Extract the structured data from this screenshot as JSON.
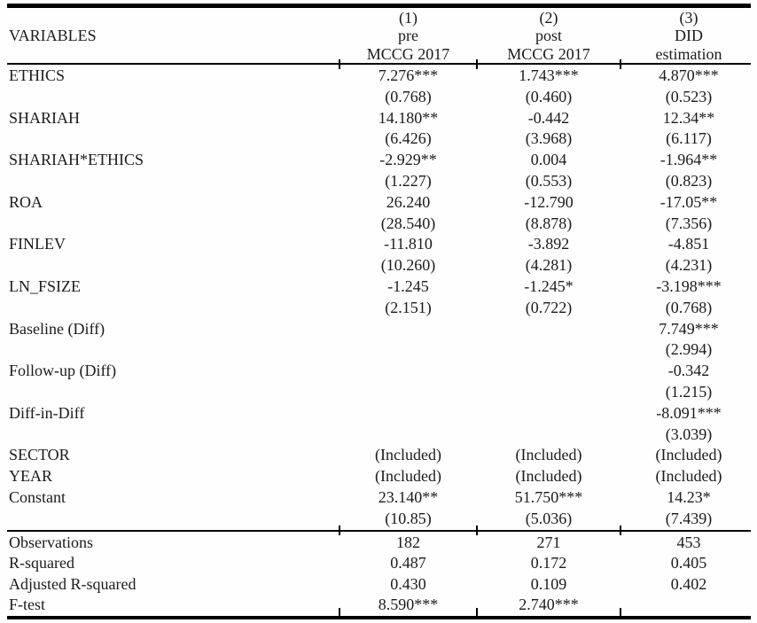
{
  "colors": {
    "background": "#fefefe",
    "text": "#1b1b1b",
    "rule": "#000000"
  },
  "table": {
    "header": {
      "variables_label": "VARIABLES",
      "columns": [
        {
          "lines": [
            "(1)",
            "pre",
            "MCCG 2017"
          ]
        },
        {
          "lines": [
            "(2)",
            "post",
            "MCCG 2017"
          ]
        },
        {
          "lines": [
            "(3)",
            "DID",
            "estimation"
          ]
        }
      ]
    },
    "body_rows": [
      {
        "label": "ETHICS",
        "cells": [
          "7.276***",
          "1.743***",
          "4.870***"
        ]
      },
      {
        "label": "",
        "cells": [
          "(0.768)",
          "(0.460)",
          "(0.523)"
        ]
      },
      {
        "label": "SHARIAH",
        "cells": [
          "14.180**",
          "-0.442",
          "12.34**"
        ]
      },
      {
        "label": "",
        "cells": [
          "(6.426)",
          "(3.968)",
          "(6.117)"
        ]
      },
      {
        "label": "SHARIAH*ETHICS",
        "cells": [
          "-2.929**",
          "0.004",
          "-1.964**"
        ]
      },
      {
        "label": "",
        "cells": [
          "(1.227)",
          "(0.553)",
          "(0.823)"
        ]
      },
      {
        "label": "ROA",
        "cells": [
          "26.240",
          "-12.790",
          "-17.05**"
        ]
      },
      {
        "label": "",
        "cells": [
          "(28.540)",
          "(8.878)",
          "(7.356)"
        ]
      },
      {
        "label": "FINLEV",
        "cells": [
          "-11.810",
          "-3.892",
          "-4.851"
        ]
      },
      {
        "label": "",
        "cells": [
          "(10.260)",
          "(4.281)",
          "(4.231)"
        ]
      },
      {
        "label": "LN_FSIZE",
        "cells": [
          "-1.245",
          "-1.245*",
          "-3.198***"
        ]
      },
      {
        "label": "",
        "cells": [
          "(2.151)",
          "(0.722)",
          "(0.768)"
        ]
      },
      {
        "label": "Baseline (Diff)",
        "cells": [
          "",
          "",
          "7.749***"
        ]
      },
      {
        "label": "",
        "cells": [
          "",
          "",
          "(2.994)"
        ]
      },
      {
        "label": "Follow-up (Diff)",
        "cells": [
          "",
          "",
          "-0.342"
        ]
      },
      {
        "label": "",
        "cells": [
          "",
          "",
          "(1.215)"
        ]
      },
      {
        "label": "Diff-in-Diff",
        "cells": [
          "",
          "",
          "-8.091***"
        ]
      },
      {
        "label": "",
        "cells": [
          "",
          "",
          "(3.039)"
        ]
      },
      {
        "label": "SECTOR",
        "cells": [
          "(Included)",
          "(Included)",
          "(Included)"
        ]
      },
      {
        "label": "YEAR",
        "cells": [
          "(Included)",
          "(Included)",
          "(Included)"
        ]
      },
      {
        "label": "Constant",
        "cells": [
          "23.140**",
          "51.750***",
          "14.23*"
        ]
      },
      {
        "label": "",
        "cells": [
          "(10.85)",
          "(5.036)",
          "(7.439)"
        ]
      }
    ],
    "footer_rows": [
      {
        "label": "Observations",
        "cells": [
          "182",
          "271",
          "453"
        ]
      },
      {
        "label": "R-squared",
        "cells": [
          "0.487",
          "0.172",
          "0.405"
        ]
      },
      {
        "label": "Adjusted R-squared",
        "cells": [
          "0.430",
          "0.109",
          "0.402"
        ]
      },
      {
        "label": "F-test",
        "cells": [
          "8.590***",
          "2.740***",
          ""
        ]
      }
    ]
  }
}
